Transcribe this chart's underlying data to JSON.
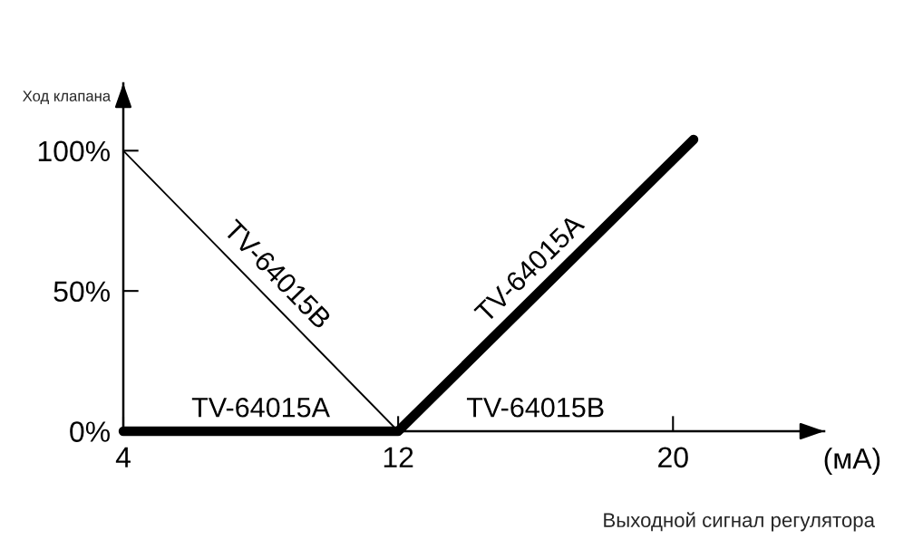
{
  "chart_data": {
    "type": "line",
    "xlabel": "Выходной сигнал регулятора",
    "ylabel": "Ход клапана",
    "annotations": [
      "(мА)"
    ],
    "xlim": [
      4,
      24.4
    ],
    "ylim": [
      0,
      124
    ],
    "xticks": [
      4,
      12,
      20
    ],
    "yticks": [
      {
        "value": 0,
        "label": "0%"
      },
      {
        "value": 50,
        "label": "50%"
      },
      {
        "value": 100,
        "label": "100%"
      }
    ],
    "line_style": "solid",
    "series": [
      {
        "name": "TV-64015A",
        "color": "#000000",
        "x": [
          4,
          12,
          20.6
        ],
        "values": [
          0,
          0,
          104
        ]
      },
      {
        "name": "TV-64015B",
        "color": "#000000",
        "x": [
          4,
          12,
          20
        ],
        "values": [
          100,
          0,
          0
        ]
      }
    ]
  }
}
